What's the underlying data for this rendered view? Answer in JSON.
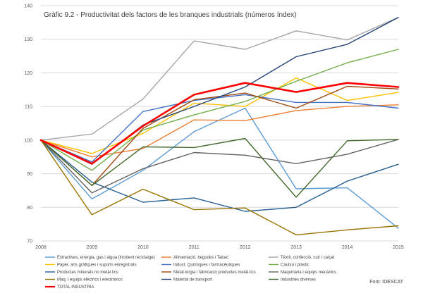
{
  "chart_data": {
    "type": "line",
    "title": "Gràfic 9.2 - Productivitat dels factors de les branques industrials (números índex)",
    "source": "Font: IDESCAT",
    "x": [
      "2008",
      "2009",
      "2010",
      "2011",
      "2012",
      "2013",
      "2014",
      "2015"
    ],
    "ylim": [
      70,
      140
    ],
    "yticks": [
      70,
      80,
      90,
      100,
      110,
      120,
      130,
      140
    ],
    "grid": true,
    "legend_position": "bottom",
    "series": [
      {
        "name": "Extractives, energia, gas i aigua (inclòent reciclatge)",
        "color": "#5b9bd5",
        "width": 1.4,
        "values": [
          100,
          82.5,
          91,
          102.5,
          109.5,
          85.5,
          85.8,
          73.8
        ]
      },
      {
        "name": "Alimentació, begudes i Tabac",
        "color": "#ed7d31",
        "width": 1.4,
        "values": [
          100,
          95,
          97.5,
          106,
          105.8,
          108.8,
          110,
          110.5
        ]
      },
      {
        "name": "Tèxtil, confecció, cuir i calçat",
        "color": "#a5a5a5",
        "width": 1.4,
        "values": [
          100,
          101.8,
          112.2,
          129.5,
          127,
          132.5,
          129.8,
          136.5
        ]
      },
      {
        "name": "Paper, arts gràfiques i suports enregistrats",
        "color": "#ffc000",
        "width": 1.4,
        "values": [
          100,
          96,
          102,
          111,
          110,
          118.5,
          111.8,
          114.2
        ]
      },
      {
        "name": "Indust. Químiques i farmacèutiques",
        "color": "#4472c4",
        "width": 1.4,
        "values": [
          100,
          93.5,
          108.5,
          111.8,
          113.5,
          111.2,
          111.2,
          109.5
        ]
      },
      {
        "name": "Cautxú i plàstic",
        "color": "#70ad47",
        "width": 1.4,
        "values": [
          100,
          91,
          103,
          107.5,
          111.5,
          117.5,
          123,
          127
        ]
      },
      {
        "name": "Productes minerals no metàl·lics",
        "color": "#255e91",
        "width": 1.4,
        "values": [
          100,
          87.5,
          81.5,
          82.8,
          78.8,
          80,
          87.8,
          92.8
        ]
      },
      {
        "name": "Metal·lúrgia i fabricació productes metàl·lics",
        "color": "#9e480e",
        "width": 1.4,
        "values": [
          100,
          86.5,
          103.5,
          112,
          114,
          109.5,
          116,
          115.2
        ]
      },
      {
        "name": "Maquinària i equips mecànics",
        "color": "#636363",
        "width": 1.4,
        "values": [
          100,
          84.3,
          91.5,
          96.3,
          95.5,
          93,
          95.8,
          100.2
        ]
      },
      {
        "name": "Maq. i equips elèctrics i electrònics",
        "color": "#997300",
        "width": 1.4,
        "values": [
          100,
          77.8,
          85.4,
          79.3,
          79.8,
          71.8,
          73.3,
          74.5
        ]
      },
      {
        "name": "Material de transport",
        "color": "#264478",
        "width": 1.4,
        "values": [
          100,
          92.8,
          104.5,
          110,
          115.8,
          124.8,
          128.5,
          136.5
        ]
      },
      {
        "name": "Indústries diverses",
        "color": "#43682b",
        "width": 1.4,
        "values": [
          100,
          86.5,
          98,
          97.8,
          100.5,
          83,
          99.8,
          100.2
        ]
      },
      {
        "name": "TOTAL INDUSTRIA",
        "color": "#ff0000",
        "width": 2.6,
        "values": [
          100,
          93,
          104.2,
          113.5,
          117,
          114.3,
          117,
          115.8
        ]
      }
    ]
  }
}
